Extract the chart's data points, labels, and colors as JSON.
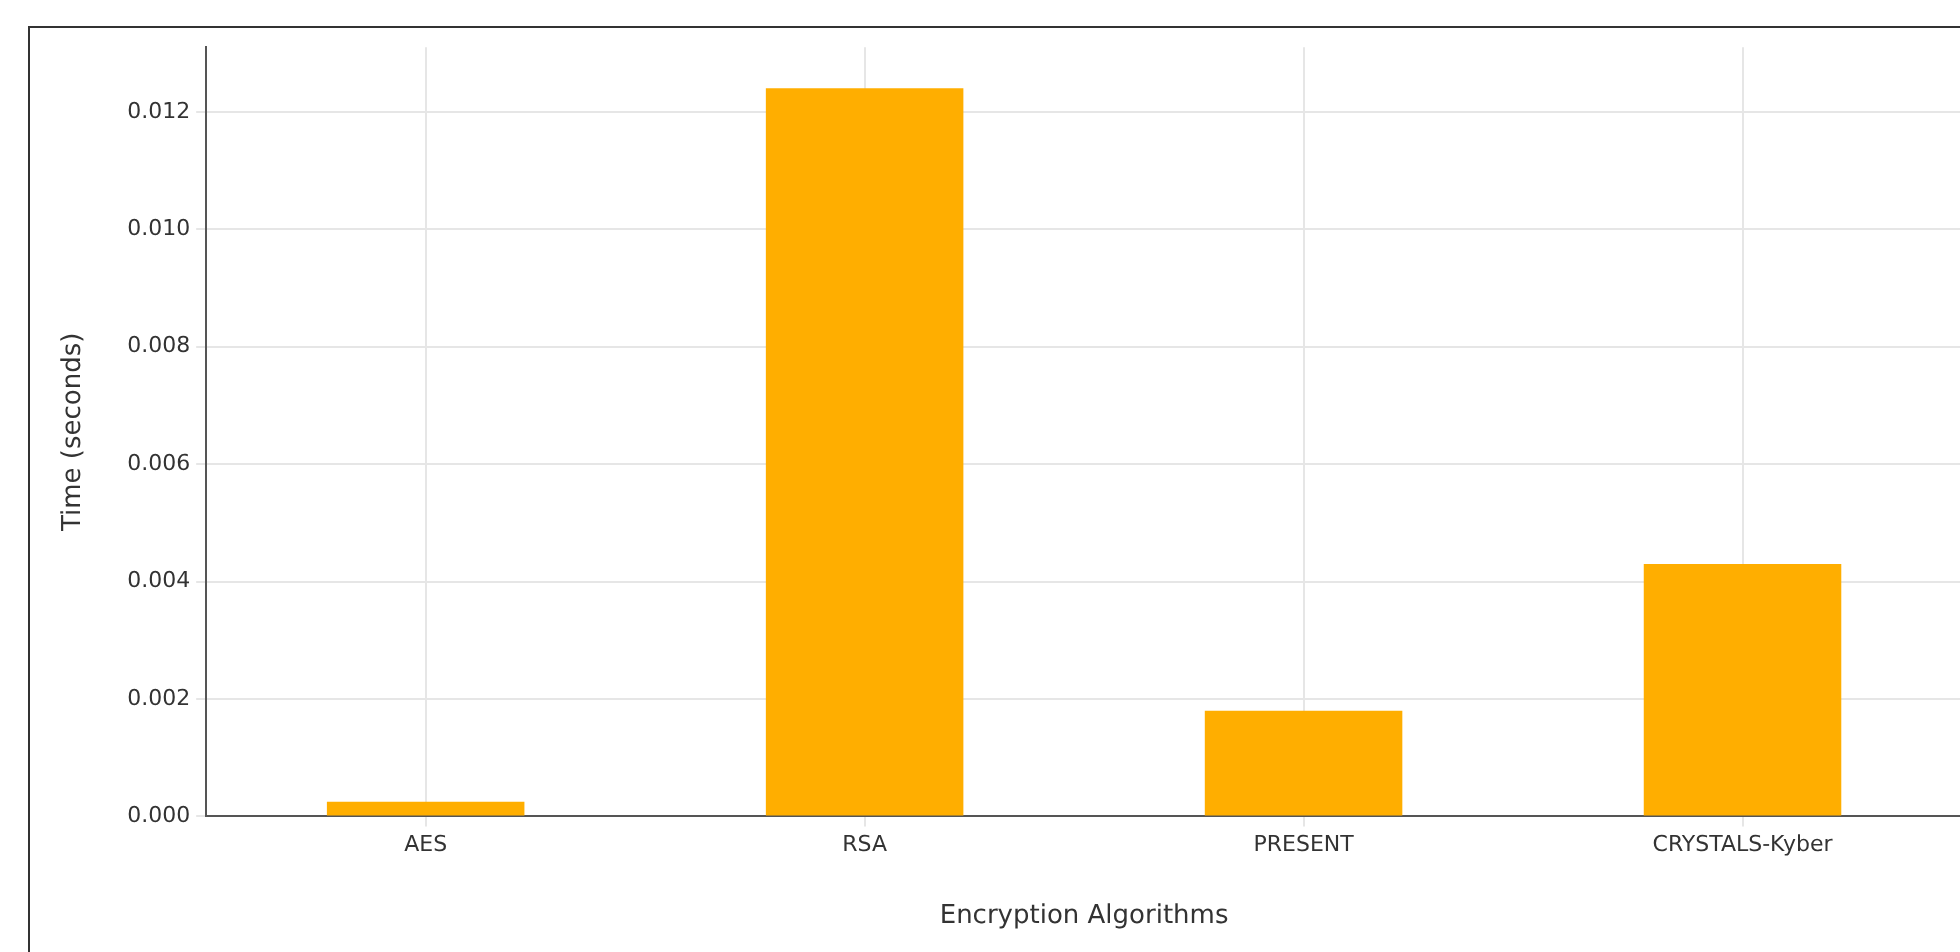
{
  "chart_data": {
    "type": "bar",
    "categories": [
      "AES",
      "RSA",
      "PRESENT",
      "CRYSTALS-Kyber"
    ],
    "values": [
      0.00025,
      0.0124,
      0.0018,
      0.0043
    ],
    "color": "#ffae00",
    "xlabel": "Encryption Algorithms",
    "ylabel": "Time (seconds)",
    "ylim": [
      0,
      0.0131
    ],
    "yticks": [
      {
        "value": 0,
        "label": "0.000"
      },
      {
        "value": 0.002,
        "label": "0.002"
      },
      {
        "value": 0.004,
        "label": "0.004"
      },
      {
        "value": 0.006,
        "label": "0.006"
      },
      {
        "value": 0.008,
        "label": "0.008"
      },
      {
        "value": 0.01,
        "label": "0.010"
      },
      {
        "value": 0.012,
        "label": "0.012"
      }
    ],
    "grid": true
  }
}
